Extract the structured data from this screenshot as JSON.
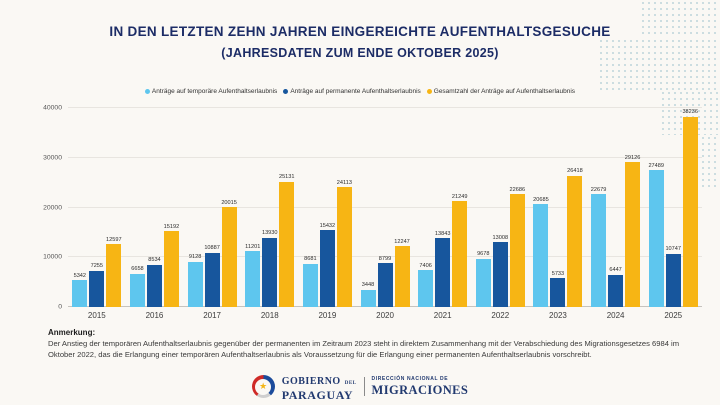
{
  "header": {
    "title": "IN DEN LETZTEN ZEHN JAHREN EINGEREICHTE AUFENTHALTSGESUCHE",
    "subtitle": "(JAHRESDATEN ZUM ENDE OKTOBER 2025)"
  },
  "colors": {
    "temporary": "#5ec6ee",
    "permanent": "#17569d",
    "total": "#f7b514",
    "title_navy": "#1c2c66",
    "background": "#faf8f4",
    "dot_pattern": "#c9dbdf"
  },
  "chart_data": {
    "type": "bar",
    "categories": [
      "2015",
      "2016",
      "2017",
      "2018",
      "2019",
      "2020",
      "2021",
      "2022",
      "2023",
      "2024",
      "2025"
    ],
    "series": [
      {
        "name": "Anträge auf temporäre Aufenthaltserlaubnis",
        "color": "#5ec6ee",
        "values": [
          5342,
          6658,
          9128,
          11201,
          8681,
          3448,
          7406,
          9678,
          20685,
          22679,
          27489
        ]
      },
      {
        "name": "Anträge auf permanente Aufenthaltserlaubnis",
        "color": "#17569d",
        "values": [
          7255,
          8534,
          10887,
          13930,
          15432,
          8799,
          13843,
          13008,
          5733,
          6447,
          10747
        ]
      },
      {
        "name": "Gesamtzahl der Anträge auf Aufenthaltserlaubnis",
        "color": "#f7b514",
        "values": [
          12597,
          15192,
          20015,
          25131,
          24113,
          12247,
          21249,
          22686,
          26418,
          29126,
          38236
        ]
      }
    ],
    "title": "IN DEN LETZTEN ZEHN JAHREN EINGEREICHTE AUFENTHALTSGESUCHE",
    "xlabel": "",
    "ylabel": "",
    "ylim": [
      0,
      40000
    ],
    "yticks": [
      0,
      10000,
      20000,
      30000,
      40000
    ],
    "grid": true,
    "legend_position": "top",
    "bar_value_labels": true
  },
  "note": {
    "heading": "Anmerkung:",
    "text": "Der Anstieg der temporären Aufenthaltserlaubnis gegenüber der permanenten im Zeitraum 2023 steht in direktem Zusammenhang mit der Verabschiedung des Migrationsgesetzes 6984 im Oktober 2022, das die Erlangung einer temporären Aufenthaltserlaubnis als Voraussetzung für die Erlangung einer permanenten Aufenthaltserlaubnis vorschreibt."
  },
  "footer": {
    "gobierno": "GOBIERNO",
    "del": "DEL",
    "paraguay": "PARAGUAY",
    "direccion": "DIRECCIÓN NACIONAL DE",
    "migraciones": "MIGRACIONES",
    "star": "★"
  }
}
